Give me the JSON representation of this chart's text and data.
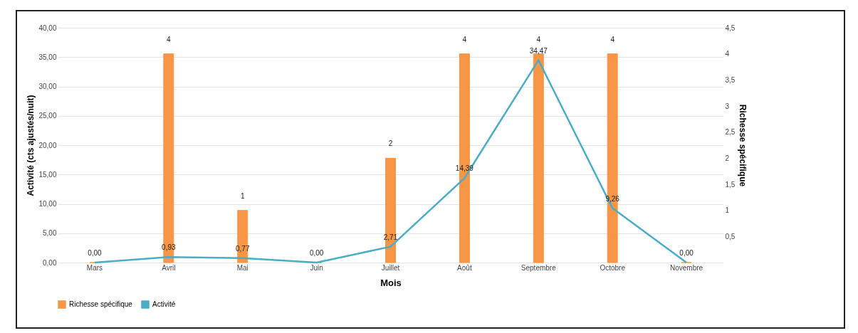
{
  "chart_data": {
    "type": "bar",
    "categories": [
      "Mars",
      "Avril",
      "Mai",
      "Juin",
      "Juillet",
      "Août",
      "Septembre",
      "Octobre",
      "Novembre"
    ],
    "xlabel": "Mois",
    "ylabel": "Activité (cts ajustés/nuit)",
    "y2label": "Richesse spécifique",
    "series": [
      {
        "name": "Richesse spécifique",
        "axis": "y2",
        "color": "#f79646",
        "values": [
          0,
          4,
          1,
          0,
          2,
          4,
          4,
          4,
          0
        ],
        "value_labels": [
          null,
          "4",
          "1",
          null,
          "2",
          "4",
          "4",
          "4",
          null
        ]
      },
      {
        "name": "Activité",
        "type": "line",
        "axis": "y",
        "color": "#4bacc6",
        "values": [
          0,
          0.93,
          0.77,
          0,
          2.71,
          14.39,
          34.47,
          9.26,
          0
        ],
        "value_labels": [
          "0,00",
          "0,93",
          "0,77",
          "0,00",
          "2,71",
          "14,39",
          "34,47",
          "9,26",
          "0,00"
        ]
      }
    ],
    "ylim": [
      0,
      40
    ],
    "yticks": [
      {
        "value": 0,
        "label": "0,00"
      },
      {
        "value": 5,
        "label": "5,00"
      },
      {
        "value": 10,
        "label": "10,00"
      },
      {
        "value": 15,
        "label": "15,00"
      },
      {
        "value": 20,
        "label": "20,00"
      },
      {
        "value": 25,
        "label": "25,00"
      },
      {
        "value": 30,
        "label": "30,00"
      },
      {
        "value": 35,
        "label": "35,00"
      },
      {
        "value": 40,
        "label": "40,00"
      }
    ],
    "y2lim": [
      0,
      4.5
    ],
    "y2ticks": [
      {
        "value": 0.5,
        "label": "0,5"
      },
      {
        "value": 1,
        "label": "1"
      },
      {
        "value": 1.5,
        "label": "1,5"
      },
      {
        "value": 2,
        "label": "2"
      },
      {
        "value": 2.5,
        "label": "2,5"
      },
      {
        "value": 3,
        "label": "3"
      },
      {
        "value": 3.5,
        "label": "3,5"
      },
      {
        "value": 4,
        "label": "4"
      },
      {
        "value": 4.5,
        "label": "4,5"
      }
    ],
    "grid": "y",
    "legend": "bottom"
  }
}
